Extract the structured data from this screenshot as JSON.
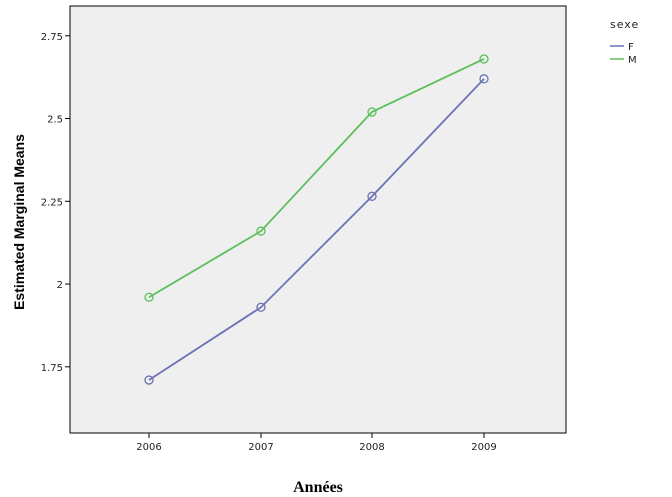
{
  "chart_data": {
    "type": "line",
    "x": [
      "2006",
      "2007",
      "2008",
      "2009"
    ],
    "series": [
      {
        "name": "F",
        "values": [
          1.71,
          1.93,
          2.265,
          2.62
        ],
        "color": "#6b72b5"
      },
      {
        "name": "M",
        "values": [
          1.96,
          2.16,
          2.52,
          2.68
        ],
        "color": "#5cbf5c"
      }
    ],
    "xlabel": "Années",
    "ylabel": "Estimated Marginal Means",
    "ylim": [
      1.55,
      2.84
    ],
    "yticks": [
      1.75,
      2,
      2.25,
      2.5,
      2.75
    ],
    "ytick_labels": [
      "1.75",
      "2",
      "2.25",
      "2.5",
      "2.75"
    ],
    "legend_title": "sexe",
    "legend_position": "top-right, outside plot",
    "plot_background": "#efefef",
    "grid": false
  }
}
